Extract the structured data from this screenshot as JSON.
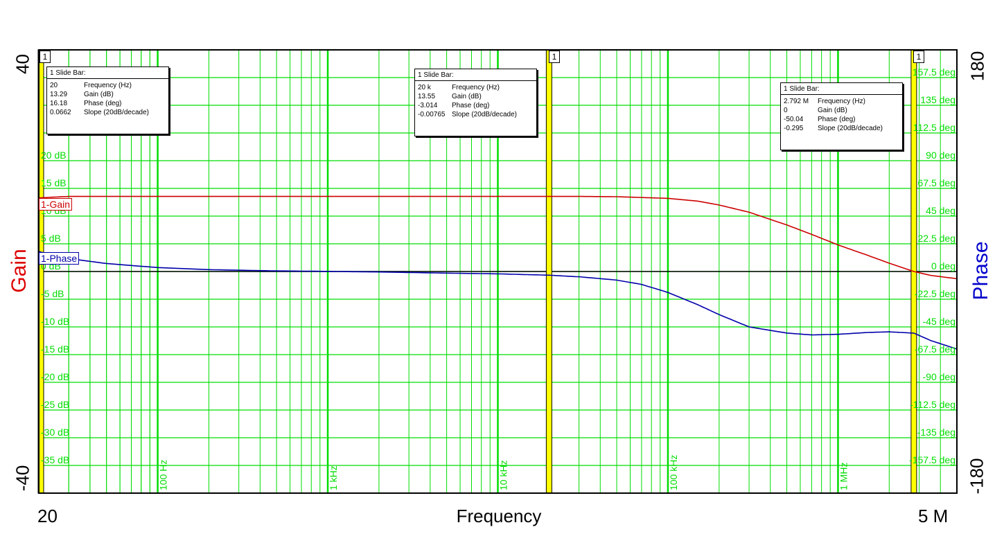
{
  "chart_data": {
    "type": "line",
    "xlabel": "Frequency",
    "ylabel": "Gain",
    "y2label": "Phase",
    "xscale": "log",
    "xlim": [
      20,
      5000000
    ],
    "ylim": [
      -40,
      40
    ],
    "y2lim": [
      -180,
      180
    ],
    "x_end_labels": [
      "20",
      "5 M"
    ],
    "y_end_labels": [
      "40",
      "-40"
    ],
    "y2_end_labels": [
      "180",
      "-180"
    ],
    "grid": true,
    "x_decade_labels": [
      {
        "x": 100,
        "label": "100 Hz"
      },
      {
        "x": 1000,
        "label": "1 kHz"
      },
      {
        "x": 10000,
        "label": "10 kHz"
      },
      {
        "x": 100000,
        "label": "100 kHz"
      },
      {
        "x": 1000000,
        "label": "1 MHz"
      }
    ],
    "y_tick_labels": [
      {
        "y": 20,
        "label": "20 dB"
      },
      {
        "y": 15,
        "label": "15 dB"
      },
      {
        "y": 10,
        "label": "10 dB"
      },
      {
        "y": 5,
        "label": "5 dB"
      },
      {
        "y": 0,
        "label": "0 dB"
      },
      {
        "y": -5,
        "label": "-5 dB"
      },
      {
        "y": -10,
        "label": "-10 dB"
      },
      {
        "y": -15,
        "label": "-15 dB"
      },
      {
        "y": -20,
        "label": "-20 dB"
      },
      {
        "y": -25,
        "label": "-25 dB"
      },
      {
        "y": -30,
        "label": "-30 dB"
      },
      {
        "y": -35,
        "label": "-35 dB"
      }
    ],
    "y2_tick_labels": [
      {
        "y": 157.5,
        "label": "157.5 deg"
      },
      {
        "y": 135,
        "label": "135 deg"
      },
      {
        "y": 112.5,
        "label": "112.5 deg"
      },
      {
        "y": 90,
        "label": "90 deg"
      },
      {
        "y": 67.5,
        "label": "67.5 deg"
      },
      {
        "y": 45,
        "label": "45 deg"
      },
      {
        "y": 22.5,
        "label": "22.5 deg"
      },
      {
        "y": 0,
        "label": "0 deg"
      },
      {
        "y": -22.5,
        "label": "-22.5 deg"
      },
      {
        "y": -45,
        "label": "-45 deg"
      },
      {
        "y": -67.5,
        "label": "-67.5 deg"
      },
      {
        "y": -90,
        "label": "-90 deg"
      },
      {
        "y": -112.5,
        "label": "-112.5 deg"
      },
      {
        "y": -135,
        "label": "-135 deg"
      },
      {
        "y": -157.5,
        "label": "-157.5 deg"
      }
    ],
    "series": [
      {
        "name": "1-Gain",
        "axis": "left",
        "color": "#cc0000",
        "x": [
          20,
          30,
          100,
          1000,
          10000,
          30000,
          50000,
          100000,
          150000,
          200000,
          300000,
          500000,
          700000,
          1000000,
          1500000,
          2000000,
          2792000,
          3500000,
          5000000
        ],
        "y": [
          13.29,
          13.55,
          13.55,
          13.55,
          13.55,
          13.55,
          13.5,
          13.2,
          12.7,
          12.0,
          10.7,
          8.4,
          6.7,
          4.8,
          2.9,
          1.5,
          0.0,
          -0.7,
          -1.3
        ]
      },
      {
        "name": "1-Phase",
        "axis": "right",
        "color": "#0000aa",
        "x": [
          20,
          30,
          50,
          100,
          200,
          500,
          1000,
          2000,
          5000,
          10000,
          20000,
          30000,
          50000,
          70000,
          100000,
          150000,
          200000,
          300000,
          500000,
          700000,
          1000000,
          1500000,
          2000000,
          2792000,
          3500000,
          5000000
        ],
        "y": [
          16.18,
          10.5,
          6.5,
          3.2,
          1.5,
          0.5,
          0.1,
          -0.4,
          -1.3,
          -1.9,
          -3.0,
          -4.3,
          -7.0,
          -10.5,
          -17.0,
          -27.0,
          -35.0,
          -45.0,
          -50.0,
          -51.5,
          -51.0,
          -49.5,
          -49.0,
          -50.04,
          -56.0,
          -63.0
        ]
      }
    ],
    "markers": [
      {
        "x": 20,
        "flag": "1"
      },
      {
        "x": 20000,
        "flag": "1"
      },
      {
        "x": 2792000,
        "flag": "1"
      }
    ],
    "slide_bars": [
      {
        "title": "1  Slide Bar:",
        "rows": [
          {
            "value": "20",
            "label": "Frequency (Hz)"
          },
          {
            "value": "13.29",
            "label": "Gain (dB)"
          },
          {
            "value": "16.18",
            "label": "Phase (deg)"
          },
          {
            "value": "0.0662",
            "label": "Slope (20dB/decade)"
          }
        ]
      },
      {
        "title": "1  Slide Bar:",
        "rows": [
          {
            "value": "20 k",
            "label": "Frequency (Hz)"
          },
          {
            "value": "13.55",
            "label": "Gain (dB)"
          },
          {
            "value": "-3.014",
            "label": "Phase (deg)"
          },
          {
            "value": "-0.00765",
            "label": "Slope (20dB/decade)"
          }
        ]
      },
      {
        "title": "1  Slide Bar:",
        "rows": [
          {
            "value": "2.792 M",
            "label": "Frequency (Hz)"
          },
          {
            "value": "0",
            "label": "Gain (dB)"
          },
          {
            "value": "-50.04",
            "label": "Phase (deg)"
          },
          {
            "value": "-0.295",
            "label": "Slope (20dB/decade)"
          }
        ]
      }
    ],
    "colors": {
      "grid": "#00dd00",
      "plot_border": "#000000",
      "marker": "#ffff00",
      "gain_axis_label": "#dd0000",
      "phase_axis_label": "#0000cc"
    }
  }
}
